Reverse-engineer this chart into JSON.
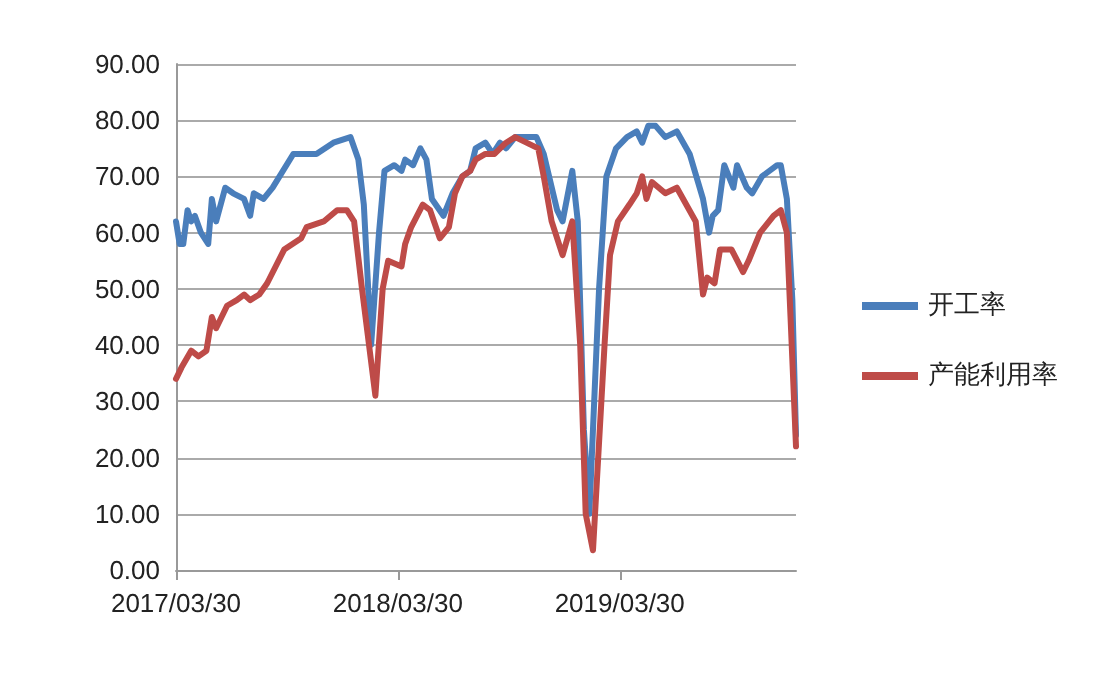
{
  "chart_data": {
    "type": "line",
    "legend": "right",
    "grid": "y",
    "marker": "none",
    "line_style": "solid",
    "xlim": [
      "2017-03-30",
      "2020-01-14"
    ],
    "xticks": [
      {
        "value": "2017-03-30",
        "label": "2017/03/30"
      },
      {
        "value": "2018-03-30",
        "label": "2018/03/30"
      },
      {
        "value": "2019-03-30",
        "label": "2019/03/30"
      }
    ],
    "ylim": [
      0,
      90
    ],
    "yticks": [
      {
        "value": 0,
        "label": "0.00"
      },
      {
        "value": 10,
        "label": "10.00"
      },
      {
        "value": 20,
        "label": "20.00"
      },
      {
        "value": 30,
        "label": "30.00"
      },
      {
        "value": 40,
        "label": "40.00"
      },
      {
        "value": 50,
        "label": "50.00"
      },
      {
        "value": 60,
        "label": "60.00"
      },
      {
        "value": 70,
        "label": "70.00"
      },
      {
        "value": 80,
        "label": "80.00"
      },
      {
        "value": 90,
        "label": "90.00"
      }
    ],
    "series": [
      {
        "name": "开工率",
        "color": "#4a7ebb",
        "x": [
          "2017-03-30",
          "2017-04-05",
          "2017-04-11",
          "2017-04-18",
          "2017-04-24",
          "2017-04-30",
          "2017-05-10",
          "2017-05-22",
          "2017-05-28",
          "2017-06-04",
          "2017-06-19",
          "2017-07-02",
          "2017-07-20",
          "2017-07-30",
          "2017-08-05",
          "2017-08-21",
          "2017-09-05",
          "2017-10-09",
          "2017-11-16",
          "2017-12-14",
          "2018-01-11",
          "2018-01-24",
          "2018-02-02",
          "2018-02-14",
          "2018-02-27",
          "2018-03-08",
          "2018-03-24",
          "2018-04-05",
          "2018-04-11",
          "2018-04-24",
          "2018-05-06",
          "2018-05-16",
          "2018-05-25",
          "2018-06-13",
          "2018-06-28",
          "2018-07-14",
          "2018-07-27",
          "2018-08-05",
          "2018-08-21",
          "2018-09-02",
          "2018-09-14",
          "2018-09-24",
          "2018-10-09",
          "2018-11-13",
          "2018-11-25",
          "2018-12-17",
          "2018-12-26",
          "2019-01-11",
          "2019-01-20",
          "2019-01-30",
          "2019-02-08",
          "2019-02-24",
          "2019-03-08",
          "2019-03-24",
          "2019-04-11",
          "2019-04-27",
          "2019-05-06",
          "2019-05-16",
          "2019-05-28",
          "2019-06-13",
          "2019-07-02",
          "2019-07-23",
          "2019-08-14",
          "2019-08-24",
          "2019-08-30",
          "2019-09-08",
          "2019-09-18",
          "2019-10-03",
          "2019-10-09",
          "2019-10-25",
          "2019-11-03",
          "2019-11-19",
          "2019-12-14",
          "2019-12-20",
          "2019-12-30",
          "2020-01-08",
          "2020-01-14"
        ],
        "values": [
          62,
          58,
          58,
          64,
          62,
          63,
          60,
          58,
          66,
          62,
          68,
          67,
          66,
          63,
          67,
          66,
          68,
          74,
          74,
          76,
          77,
          73,
          65,
          40,
          60,
          71,
          72,
          71,
          73,
          72,
          75,
          73,
          66,
          63,
          67,
          70,
          71,
          75,
          76,
          74,
          76,
          75,
          77,
          77,
          74,
          64,
          62,
          71,
          62,
          25,
          10,
          50,
          70,
          75,
          77,
          78,
          76,
          79,
          79,
          77,
          78,
          74,
          66,
          60,
          63,
          64,
          72,
          68,
          72,
          68,
          67,
          70,
          72,
          72,
          66,
          48,
          24
        ]
      },
      {
        "name": "产能利用率",
        "color": "#be4b48",
        "x": [
          "2017-03-30",
          "2017-04-08",
          "2017-04-24",
          "2017-05-06",
          "2017-05-19",
          "2017-05-28",
          "2017-06-04",
          "2017-06-22",
          "2017-07-08",
          "2017-07-20",
          "2017-07-30",
          "2017-08-14",
          "2017-08-27",
          "2017-09-24",
          "2017-10-22",
          "2017-10-31",
          "2017-11-28",
          "2017-12-20",
          "2018-01-05",
          "2018-01-17",
          "2018-01-30",
          "2018-02-21",
          "2018-03-05",
          "2018-03-14",
          "2018-04-05",
          "2018-04-11",
          "2018-04-21",
          "2018-05-10",
          "2018-05-22",
          "2018-06-07",
          "2018-06-22",
          "2018-07-02",
          "2018-07-14",
          "2018-07-27",
          "2018-08-05",
          "2018-08-21",
          "2018-09-05",
          "2018-09-24",
          "2018-10-09",
          "2018-11-16",
          "2018-11-25",
          "2018-12-08",
          "2018-12-26",
          "2019-01-11",
          "2019-01-24",
          "2019-02-02",
          "2019-02-14",
          "2019-03-05",
          "2019-03-14",
          "2019-03-27",
          "2019-04-15",
          "2019-04-27",
          "2019-05-06",
          "2019-05-13",
          "2019-05-22",
          "2019-06-13",
          "2019-07-02",
          "2019-08-02",
          "2019-08-14",
          "2019-08-21",
          "2019-09-02",
          "2019-09-11",
          "2019-09-30",
          "2019-10-19",
          "2019-10-28",
          "2019-11-16",
          "2019-12-08",
          "2019-12-20",
          "2019-12-30",
          "2020-01-05",
          "2020-01-14"
        ],
        "values": [
          34,
          36,
          39,
          38,
          39,
          45,
          43,
          47,
          48,
          49,
          48,
          49,
          51,
          57,
          59,
          61,
          62,
          64,
          64,
          62,
          50,
          31,
          50,
          55,
          54,
          58,
          61,
          65,
          64,
          59,
          61,
          67,
          70,
          71,
          73,
          74,
          74,
          76,
          77,
          75,
          70,
          62,
          56,
          62,
          40,
          10,
          3.5,
          40,
          56,
          62,
          65,
          67,
          70,
          66,
          69,
          67,
          68,
          62,
          49,
          52,
          51,
          57,
          57,
          53,
          55,
          60,
          63,
          64,
          60,
          45,
          22
        ]
      }
    ]
  }
}
